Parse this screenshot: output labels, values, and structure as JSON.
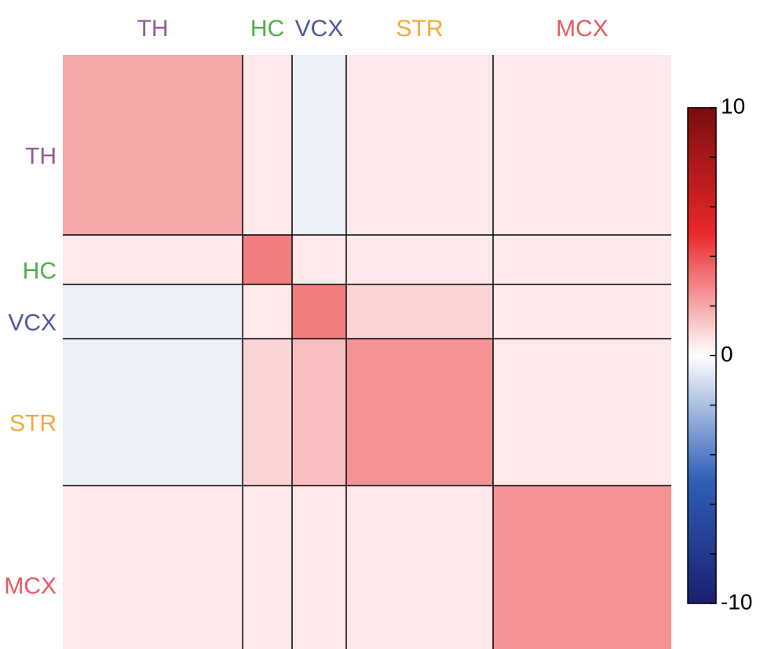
{
  "chart_data": {
    "type": "heatmap",
    "categories": [
      "TH",
      "HC",
      "VCX",
      "STR",
      "MCX"
    ],
    "colors": [
      "#8e5a9e",
      "#4daf4a",
      "#4b57a3",
      "#f5a93a",
      "#e8595f"
    ],
    "sizes": [
      229,
      63,
      69,
      187,
      227
    ],
    "values": [
      [
        2,
        0.5,
        -0.5,
        0.5,
        0.5
      ],
      [
        0.5,
        3,
        0.5,
        0.5,
        0.5
      ],
      [
        -0.5,
        0.5,
        3,
        1,
        0.5
      ],
      [
        -0.5,
        1,
        1.5,
        2.5,
        0.5
      ],
      [
        0.5,
        0.5,
        0.5,
        0.5,
        2.5
      ]
    ],
    "zlim": [
      -10,
      10
    ],
    "colorbar_ticks": [
      -10,
      0,
      10
    ],
    "colorbar_minor_ticks": [
      -8,
      -6,
      -4,
      -2,
      2,
      4,
      6,
      8
    ],
    "colormap": [
      "#1b1f6e",
      "#2f5fb8",
      "#ffffff",
      "#e8262a",
      "#7a0e0e"
    ]
  }
}
